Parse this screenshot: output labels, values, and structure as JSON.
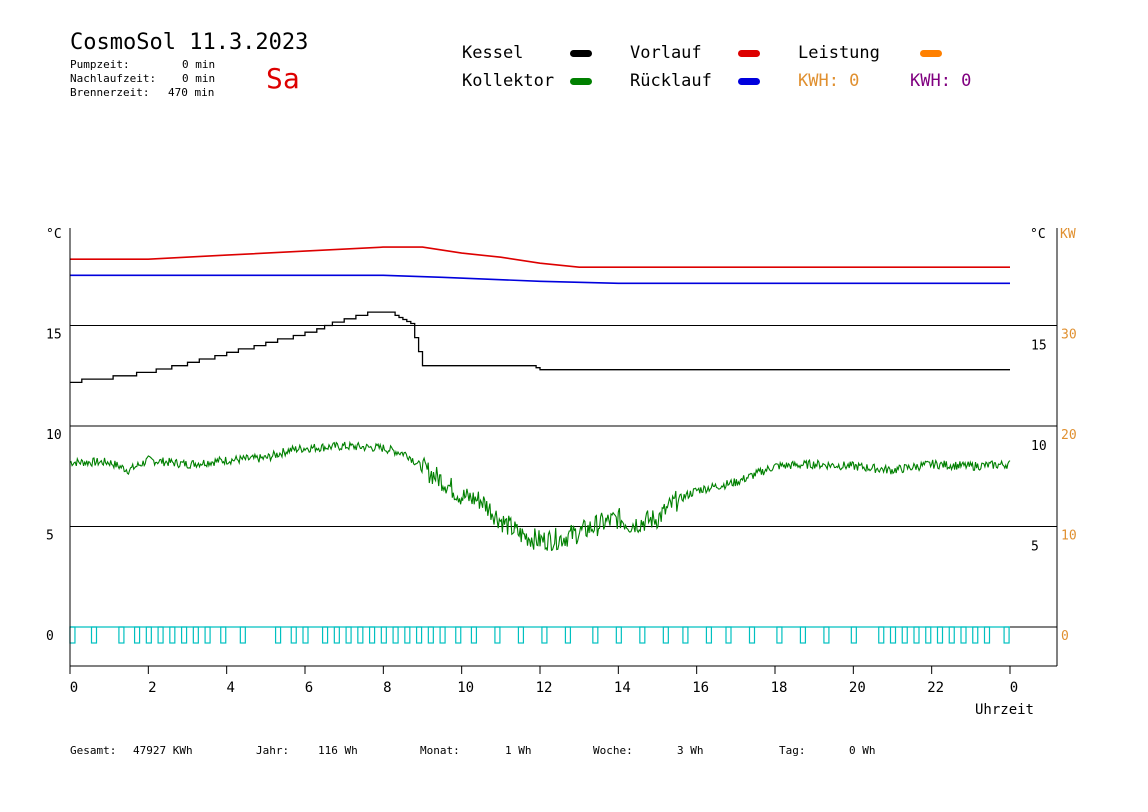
{
  "header": {
    "title": "CosmoSol 11.3.2023",
    "day": "Sa",
    "stats": [
      {
        "label": "Pumpzeit:",
        "value": "0 min"
      },
      {
        "label": "Nachlaufzeit:",
        "value": "0 min"
      },
      {
        "label": "Brennerzeit:",
        "value": "470 min"
      }
    ]
  },
  "legend": {
    "kessel": {
      "label": "Kessel",
      "color": "#000000"
    },
    "kollektor": {
      "label": "Kollektor",
      "color": "#008000"
    },
    "vorlauf": {
      "label": "Vorlauf",
      "color": "#dd0000"
    },
    "ruecklauf": {
      "label": "Rücklauf",
      "color": "#0000dd"
    },
    "leistung": {
      "label": "Leistung",
      "color": "#ff8000"
    },
    "kwh_orange": "KWH: 0",
    "kwh_purple": "KWH: 0",
    "kwh_orange_color": "#e09030",
    "kwh_purple_color": "#800080"
  },
  "footer": {
    "gesamt_label": "Gesamt:",
    "gesamt_value": "47927 KWh",
    "jahr_label": "Jahr:",
    "jahr_value": "116 Wh",
    "monat_label": "Monat:",
    "monat_value": "1 Wh",
    "woche_label": "Woche:",
    "woche_value": "3 Wh",
    "tag_label": "Tag:",
    "tag_value": "0 Wh"
  },
  "chart_data": {
    "type": "line",
    "xlabel": "Uhrzeit",
    "x_ticks": [
      "0",
      "2",
      "4",
      "6",
      "8",
      "10",
      "12",
      "14",
      "16",
      "18",
      "20",
      "22",
      "0"
    ],
    "xlim": [
      0,
      24
    ],
    "left_axis": {
      "unit": "°C",
      "ticks": [
        "0",
        "5",
        "10",
        "15"
      ],
      "ylim": [
        -1.6,
        19.8
      ]
    },
    "right_axis_inner": {
      "unit": "°C",
      "ticks": [
        "5",
        "10",
        "15"
      ]
    },
    "right_axis_kw": {
      "unit": "KW",
      "ticks": [
        "0",
        "10",
        "20",
        "30"
      ],
      "color": "#e09030"
    },
    "grid": "horizontal at 0, 5, 10, 15",
    "series": [
      {
        "name": "Vorlauf",
        "color": "#dd0000",
        "points": [
          [
            0,
            18.3
          ],
          [
            2,
            18.3
          ],
          [
            4,
            18.5
          ],
          [
            6,
            18.7
          ],
          [
            8,
            18.9
          ],
          [
            9,
            18.9
          ],
          [
            10,
            18.6
          ],
          [
            11,
            18.4
          ],
          [
            12,
            18.1
          ],
          [
            13,
            17.9
          ],
          [
            16,
            17.9
          ],
          [
            20,
            17.9
          ],
          [
            24,
            17.9
          ]
        ]
      },
      {
        "name": "Rücklauf",
        "color": "#0000dd",
        "points": [
          [
            0,
            17.5
          ],
          [
            4,
            17.5
          ],
          [
            8,
            17.5
          ],
          [
            9.5,
            17.4
          ],
          [
            12,
            17.2
          ],
          [
            14,
            17.1
          ],
          [
            18,
            17.1
          ],
          [
            24,
            17.1
          ]
        ]
      },
      {
        "name": "Kessel",
        "color": "#000000",
        "points": [
          [
            0,
            12.2
          ],
          [
            1,
            12.4
          ],
          [
            2,
            12.7
          ],
          [
            3,
            13.1
          ],
          [
            4,
            13.6
          ],
          [
            5,
            14.1
          ],
          [
            6,
            14.6
          ],
          [
            7,
            15.3
          ],
          [
            7.8,
            15.7
          ],
          [
            8.2,
            15.7
          ],
          [
            8.3,
            15.5
          ],
          [
            8.7,
            15.1
          ],
          [
            9.0,
            13.0
          ],
          [
            11.8,
            13.0
          ],
          [
            12.0,
            12.8
          ],
          [
            18,
            12.8
          ],
          [
            24,
            12.8
          ]
        ]
      },
      {
        "name": "Kollektor",
        "color": "#008000",
        "points": [
          [
            0,
            8.2
          ],
          [
            1,
            8.2
          ],
          [
            1.5,
            7.8
          ],
          [
            2,
            8.3
          ],
          [
            3,
            8.1
          ],
          [
            4,
            8.3
          ],
          [
            5,
            8.4
          ],
          [
            5.6,
            8.8
          ],
          [
            6,
            8.9
          ],
          [
            7,
            9.0
          ],
          [
            8,
            8.9
          ],
          [
            8.6,
            8.6
          ],
          [
            9,
            7.9
          ],
          [
            9.5,
            7.3
          ],
          [
            10,
            6.5
          ],
          [
            10.5,
            6.3
          ],
          [
            11,
            5.3
          ],
          [
            11.5,
            4.6
          ],
          [
            12,
            4.3
          ],
          [
            12.5,
            4.4
          ],
          [
            13,
            4.7
          ],
          [
            13.5,
            5.1
          ],
          [
            14,
            5.4
          ],
          [
            14.3,
            5.1
          ],
          [
            15,
            5.4
          ],
          [
            15.5,
            6.3
          ],
          [
            16,
            6.8
          ],
          [
            17,
            7.2
          ],
          [
            18,
            8.0
          ],
          [
            19,
            8.1
          ],
          [
            20,
            8.0
          ],
          [
            21,
            7.8
          ],
          [
            22,
            8.1
          ],
          [
            23,
            8.0
          ],
          [
            24,
            8.1
          ]
        ]
      },
      {
        "name": "Leistung",
        "color": "#00c0c0",
        "values": "0 over the whole day"
      }
    ]
  }
}
